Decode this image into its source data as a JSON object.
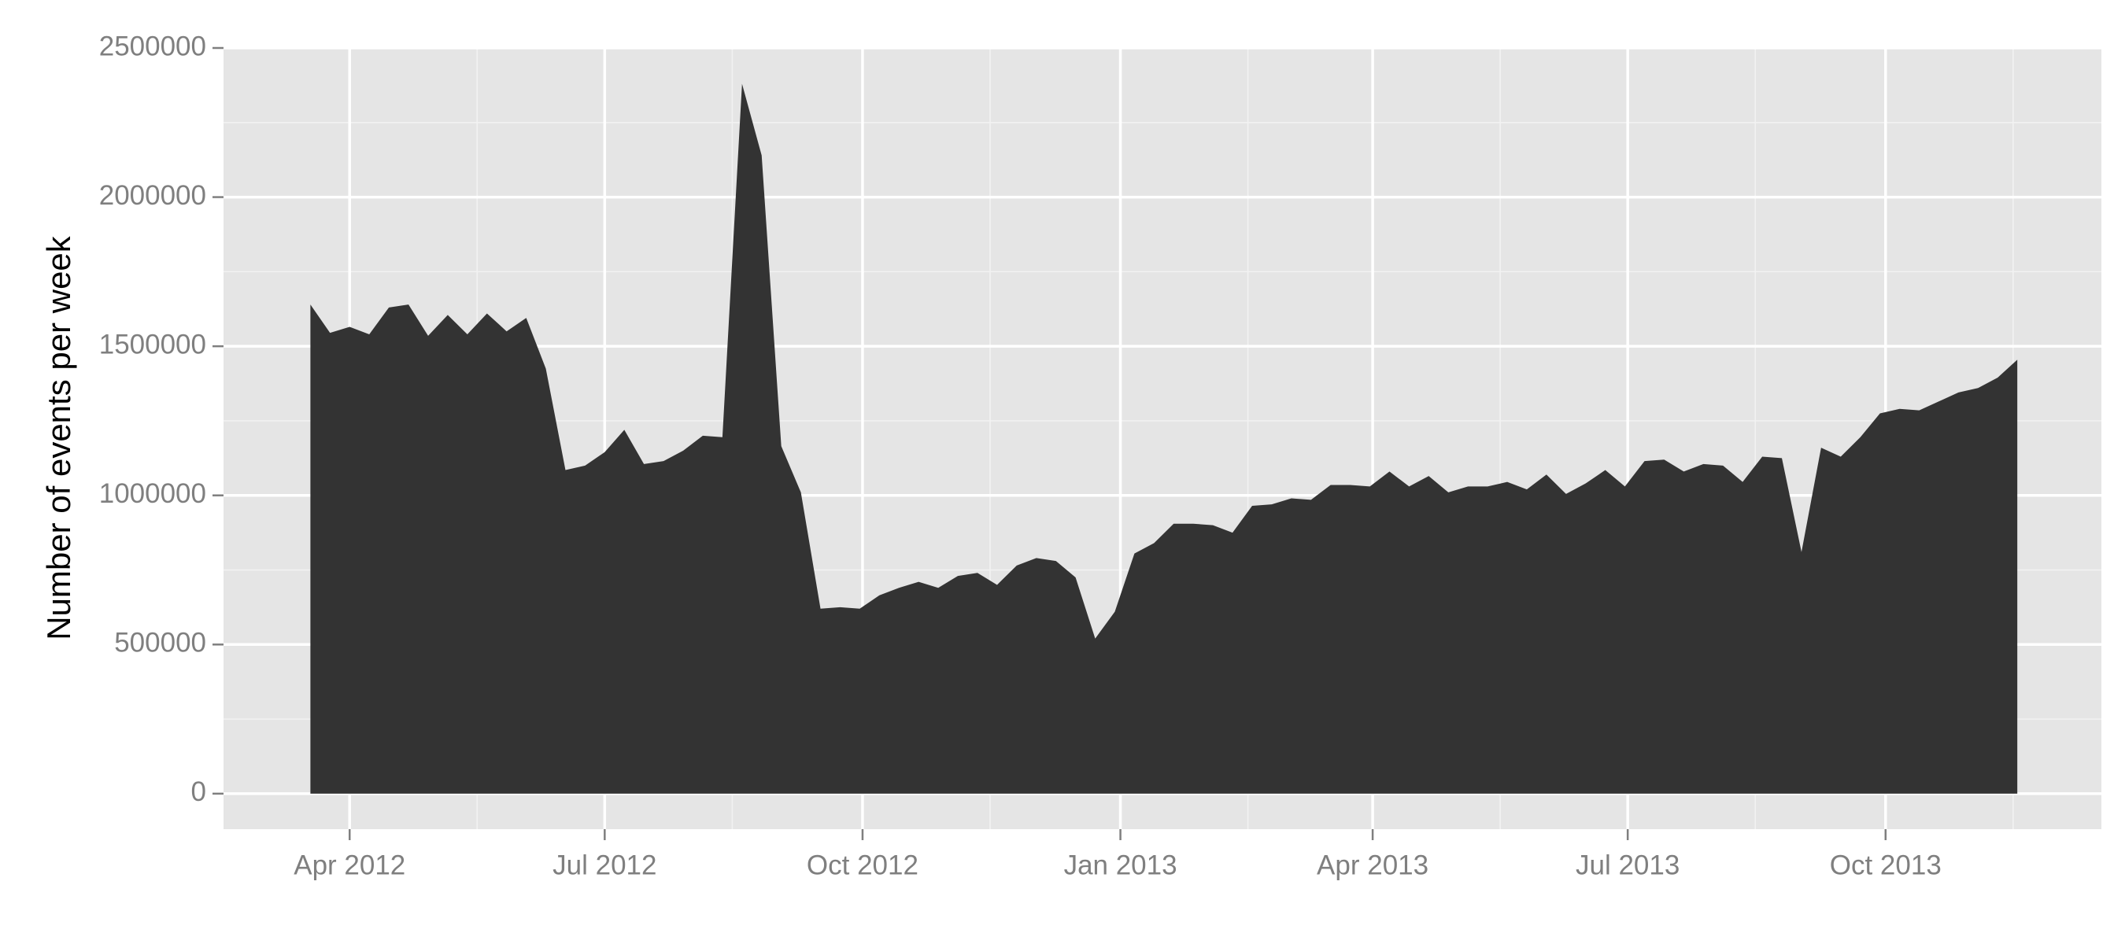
{
  "chart_data": {
    "type": "area",
    "y_label": "Number of events per week",
    "color": "#333333",
    "grid": true,
    "x": [
      "2012-03-18",
      "2012-03-25",
      "2012-04-01",
      "2012-04-08",
      "2012-04-15",
      "2012-04-22",
      "2012-04-29",
      "2012-05-06",
      "2012-05-13",
      "2012-05-20",
      "2012-05-27",
      "2012-06-03",
      "2012-06-10",
      "2012-06-17",
      "2012-06-24",
      "2012-07-01",
      "2012-07-08",
      "2012-07-15",
      "2012-07-22",
      "2012-07-29",
      "2012-08-05",
      "2012-08-12",
      "2012-08-19",
      "2012-08-26",
      "2012-09-02",
      "2012-09-09",
      "2012-09-16",
      "2012-09-23",
      "2012-09-30",
      "2012-10-07",
      "2012-10-14",
      "2012-10-21",
      "2012-10-28",
      "2012-11-04",
      "2012-11-11",
      "2012-11-18",
      "2012-11-25",
      "2012-12-02",
      "2012-12-09",
      "2012-12-16",
      "2012-12-23",
      "2012-12-30",
      "2013-01-06",
      "2013-01-13",
      "2013-01-20",
      "2013-01-27",
      "2013-02-03",
      "2013-02-10",
      "2013-02-17",
      "2013-02-24",
      "2013-03-03",
      "2013-03-10",
      "2013-03-17",
      "2013-03-24",
      "2013-03-31",
      "2013-04-07",
      "2013-04-14",
      "2013-04-21",
      "2013-04-28",
      "2013-05-05",
      "2013-05-12",
      "2013-05-19",
      "2013-05-26",
      "2013-06-02",
      "2013-06-09",
      "2013-06-16",
      "2013-06-23",
      "2013-06-30",
      "2013-07-07",
      "2013-07-14",
      "2013-07-21",
      "2013-07-28",
      "2013-08-04",
      "2013-08-11",
      "2013-08-18",
      "2013-08-25",
      "2013-09-01",
      "2013-09-08",
      "2013-09-15",
      "2013-09-22",
      "2013-09-29",
      "2013-10-06",
      "2013-10-13",
      "2013-10-20",
      "2013-10-27",
      "2013-11-03",
      "2013-11-10",
      "2013-11-17"
    ],
    "values": [
      1640000,
      1545000,
      1565000,
      1540000,
      1630000,
      1640000,
      1535000,
      1605000,
      1540000,
      1610000,
      1550000,
      1595000,
      1425000,
      1085000,
      1100000,
      1145000,
      1220000,
      1105000,
      1115000,
      1150000,
      1200000,
      1195000,
      2380000,
      2140000,
      1165000,
      1010000,
      620000,
      625000,
      620000,
      665000,
      690000,
      710000,
      690000,
      730000,
      740000,
      700000,
      765000,
      790000,
      780000,
      725000,
      520000,
      610000,
      805000,
      840000,
      905000,
      905000,
      900000,
      875000,
      965000,
      970000,
      990000,
      985000,
      1035000,
      1035000,
      1030000,
      1080000,
      1030000,
      1065000,
      1010000,
      1030000,
      1030000,
      1045000,
      1020000,
      1070000,
      1005000,
      1040000,
      1085000,
      1030000,
      1115000,
      1120000,
      1080000,
      1105000,
      1100000,
      1045000,
      1130000,
      1125000,
      810000,
      1160000,
      1130000,
      1195000,
      1275000,
      1290000,
      1285000,
      1315000,
      1345000,
      1360000,
      1395000,
      1455000
    ],
    "xlim": [
      "2012-02-16",
      "2013-12-17"
    ],
    "xticks": [
      {
        "value": "2012-04-01",
        "label": "Apr 2012"
      },
      {
        "value": "2012-07-01",
        "label": "Jul 2012"
      },
      {
        "value": "2012-10-01",
        "label": "Oct 2012"
      },
      {
        "value": "2013-01-01",
        "label": "Jan 2013"
      },
      {
        "value": "2013-04-01",
        "label": "Apr 2013"
      },
      {
        "value": "2013-07-01",
        "label": "Jul 2013"
      },
      {
        "value": "2013-10-01",
        "label": "Oct 2013"
      }
    ],
    "ylim": [
      -119000,
      2500000
    ],
    "yticks": [
      0,
      500000,
      1000000,
      1500000,
      2000000,
      2500000
    ]
  }
}
